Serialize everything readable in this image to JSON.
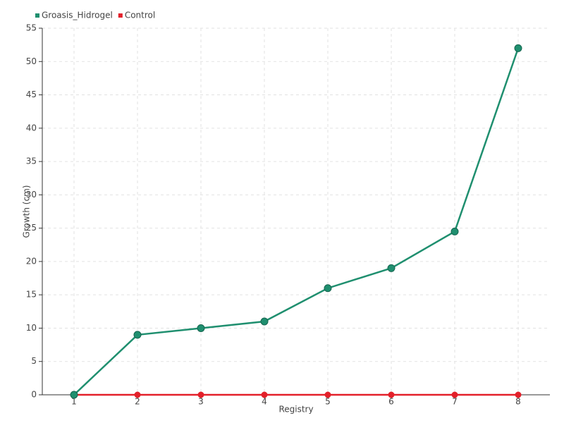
{
  "chart_data": {
    "type": "line",
    "x_label": "Registry",
    "y_label": "Growth (cm)",
    "x": [
      1,
      2,
      3,
      4,
      5,
      6,
      7,
      8
    ],
    "series": [
      {
        "name": "Groasis_Hidrogel",
        "color": "#1f8f6f",
        "values": [
          0,
          9,
          10,
          11,
          16,
          19,
          24.5,
          52
        ]
      },
      {
        "name": "Control",
        "color": "#e3202a",
        "values": [
          0,
          0,
          0,
          0,
          0,
          0,
          0,
          0
        ]
      }
    ],
    "xlim": [
      0.5,
      8.5
    ],
    "xticks": [
      1,
      2,
      3,
      4,
      5,
      6,
      7,
      8
    ],
    "ylim": [
      0,
      55
    ],
    "yticks": [
      0,
      5,
      10,
      15,
      20,
      25,
      30,
      35,
      40,
      45,
      50,
      55
    ],
    "grid": true,
    "legend": "top-left"
  }
}
